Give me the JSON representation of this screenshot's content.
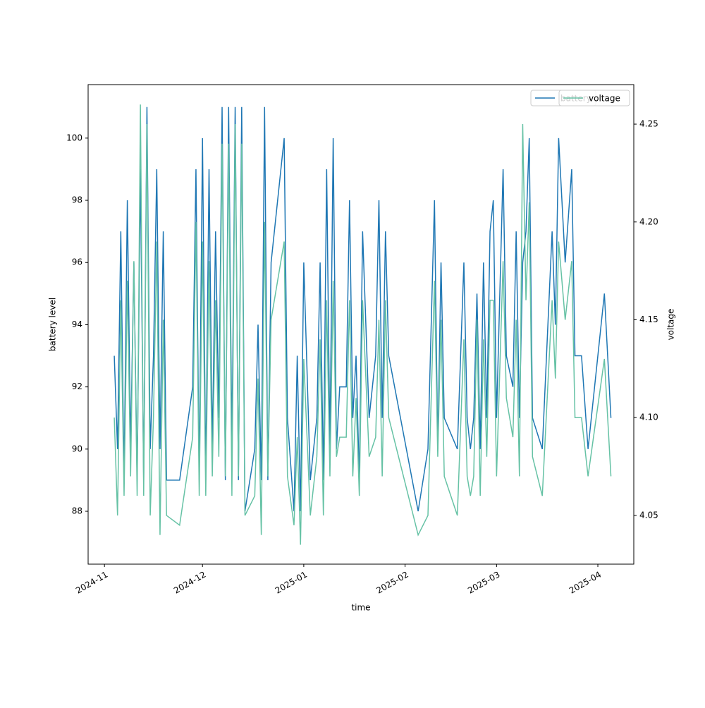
{
  "chart_data": {
    "type": "line",
    "x_label": "time",
    "y_label": "battery level",
    "y2_label": "voltage",
    "legend": "upper right",
    "x": [
      "2024-11-04",
      "2024-11-05",
      "2024-11-06",
      "2024-11-07",
      "2024-11-08",
      "2024-11-09",
      "2024-11-10",
      "2024-11-11",
      "2024-11-12",
      "2024-11-13",
      "2024-11-14",
      "2024-11-15",
      "2024-11-16",
      "2024-11-17",
      "2024-11-18",
      "2024-11-19",
      "2024-11-20",
      "2024-11-24",
      "2024-11-28",
      "2024-11-29",
      "2024-11-30",
      "2024-12-01",
      "2024-12-02",
      "2024-12-03",
      "2024-12-04",
      "2024-12-05",
      "2024-12-06",
      "2024-12-07",
      "2024-12-08",
      "2024-12-09",
      "2024-12-10",
      "2024-12-11",
      "2024-12-12",
      "2024-12-13",
      "2024-12-14",
      "2024-12-17",
      "2024-12-18",
      "2024-12-19",
      "2024-12-20",
      "2024-12-21",
      "2024-12-22",
      "2024-12-26",
      "2024-12-27",
      "2024-12-29",
      "2024-12-30",
      "2024-12-31",
      "2025-01-01",
      "2025-01-03",
      "2025-01-05",
      "2025-01-06",
      "2025-01-07",
      "2025-01-08",
      "2025-01-09",
      "2025-01-10",
      "2025-01-11",
      "2025-01-12",
      "2025-01-14",
      "2025-01-15",
      "2025-01-16",
      "2025-01-17",
      "2025-01-18",
      "2025-01-19",
      "2025-01-21",
      "2025-01-23",
      "2025-01-24",
      "2025-01-25",
      "2025-01-26",
      "2025-01-27",
      "2025-02-05",
      "2025-02-08",
      "2025-02-10",
      "2025-02-11",
      "2025-02-12",
      "2025-02-13",
      "2025-02-17",
      "2025-02-19",
      "2025-02-20",
      "2025-02-21",
      "2025-02-22",
      "2025-02-23",
      "2025-02-24",
      "2025-02-25",
      "2025-02-26",
      "2025-02-27",
      "2025-02-28",
      "2025-03-01",
      "2025-03-03",
      "2025-03-04",
      "2025-03-06",
      "2025-03-07",
      "2025-03-08",
      "2025-03-09",
      "2025-03-10",
      "2025-03-11",
      "2025-03-12",
      "2025-03-15",
      "2025-03-18",
      "2025-03-19",
      "2025-03-20",
      "2025-03-22",
      "2025-03-24",
      "2025-03-25",
      "2025-03-27",
      "2025-03-29",
      "2025-04-03",
      "2025-04-05"
    ],
    "series": [
      {
        "name": "battery",
        "color": "#1f77b4",
        "axis": "y",
        "values": [
          93,
          90,
          97,
          89,
          98,
          90,
          96,
          89,
          99,
          89,
          101,
          90,
          93,
          99,
          90,
          97,
          89,
          89,
          92,
          99,
          89,
          100,
          89,
          99,
          90,
          97,
          91,
          101,
          89,
          101,
          90,
          101,
          89,
          101,
          88,
          90,
          94,
          89,
          101,
          89,
          96,
          100,
          91,
          88,
          93,
          88,
          96,
          89,
          91,
          96,
          89,
          99,
          90,
          100,
          90,
          92,
          92,
          98,
          91,
          93,
          89,
          97,
          91,
          93,
          98,
          91,
          97,
          93,
          88,
          90,
          98,
          90,
          96,
          91,
          90,
          96,
          91,
          90,
          91,
          95,
          90,
          96,
          91,
          97,
          98,
          91,
          99,
          93,
          92,
          97,
          91,
          96,
          97,
          100,
          91,
          90,
          97,
          94,
          100,
          96,
          99,
          93,
          93,
          90,
          95,
          91
        ]
      },
      {
        "name": "voltage",
        "color": "#66c2a5",
        "axis": "y2",
        "values": [
          4.1,
          4.05,
          4.16,
          4.06,
          4.17,
          4.07,
          4.18,
          4.06,
          4.26,
          4.06,
          4.25,
          4.05,
          4.1,
          4.19,
          4.04,
          4.15,
          4.05,
          4.045,
          4.09,
          4.2,
          4.06,
          4.19,
          4.06,
          4.18,
          4.07,
          4.16,
          4.08,
          4.24,
          4.07,
          4.24,
          4.06,
          4.25,
          4.07,
          4.24,
          4.05,
          4.06,
          4.12,
          4.04,
          4.2,
          4.07,
          4.15,
          4.19,
          4.07,
          4.045,
          4.09,
          4.035,
          4.13,
          4.05,
          4.08,
          4.14,
          4.05,
          4.16,
          4.07,
          4.17,
          4.08,
          4.09,
          4.09,
          4.16,
          4.07,
          4.11,
          4.06,
          4.16,
          4.08,
          4.09,
          4.15,
          4.07,
          4.16,
          4.1,
          4.04,
          4.05,
          4.17,
          4.08,
          4.15,
          4.07,
          4.05,
          4.14,
          4.07,
          4.06,
          4.07,
          4.15,
          4.06,
          4.14,
          4.08,
          4.16,
          4.16,
          4.07,
          4.18,
          4.11,
          4.09,
          4.15,
          4.07,
          4.25,
          4.16,
          4.21,
          4.08,
          4.06,
          4.16,
          4.12,
          4.19,
          4.15,
          4.18,
          4.1,
          4.1,
          4.07,
          4.13,
          4.07
        ]
      }
    ],
    "xlim": [
      "2024-10-27",
      "2025-04-12"
    ],
    "xticks": [
      {
        "value": "2024-11-01",
        "label": "2024-11"
      },
      {
        "value": "2024-12-01",
        "label": "2024-12"
      },
      {
        "value": "2025-01-01",
        "label": "2025-01"
      },
      {
        "value": "2025-02-01",
        "label": "2025-02"
      },
      {
        "value": "2025-03-01",
        "label": "2025-03"
      },
      {
        "value": "2025-04-01",
        "label": "2025-04"
      }
    ],
    "ylim": [
      86.3,
      101.72
    ],
    "yticks": [
      88,
      90,
      92,
      94,
      96,
      98,
      100
    ],
    "y2lim": [
      4.0251,
      4.2702
    ],
    "y2ticks": [
      4.05,
      {
        "value": 4.1,
        "label": "4.10"
      },
      4.15,
      {
        "value": 4.2,
        "label": "4.20"
      },
      4.25
    ]
  }
}
